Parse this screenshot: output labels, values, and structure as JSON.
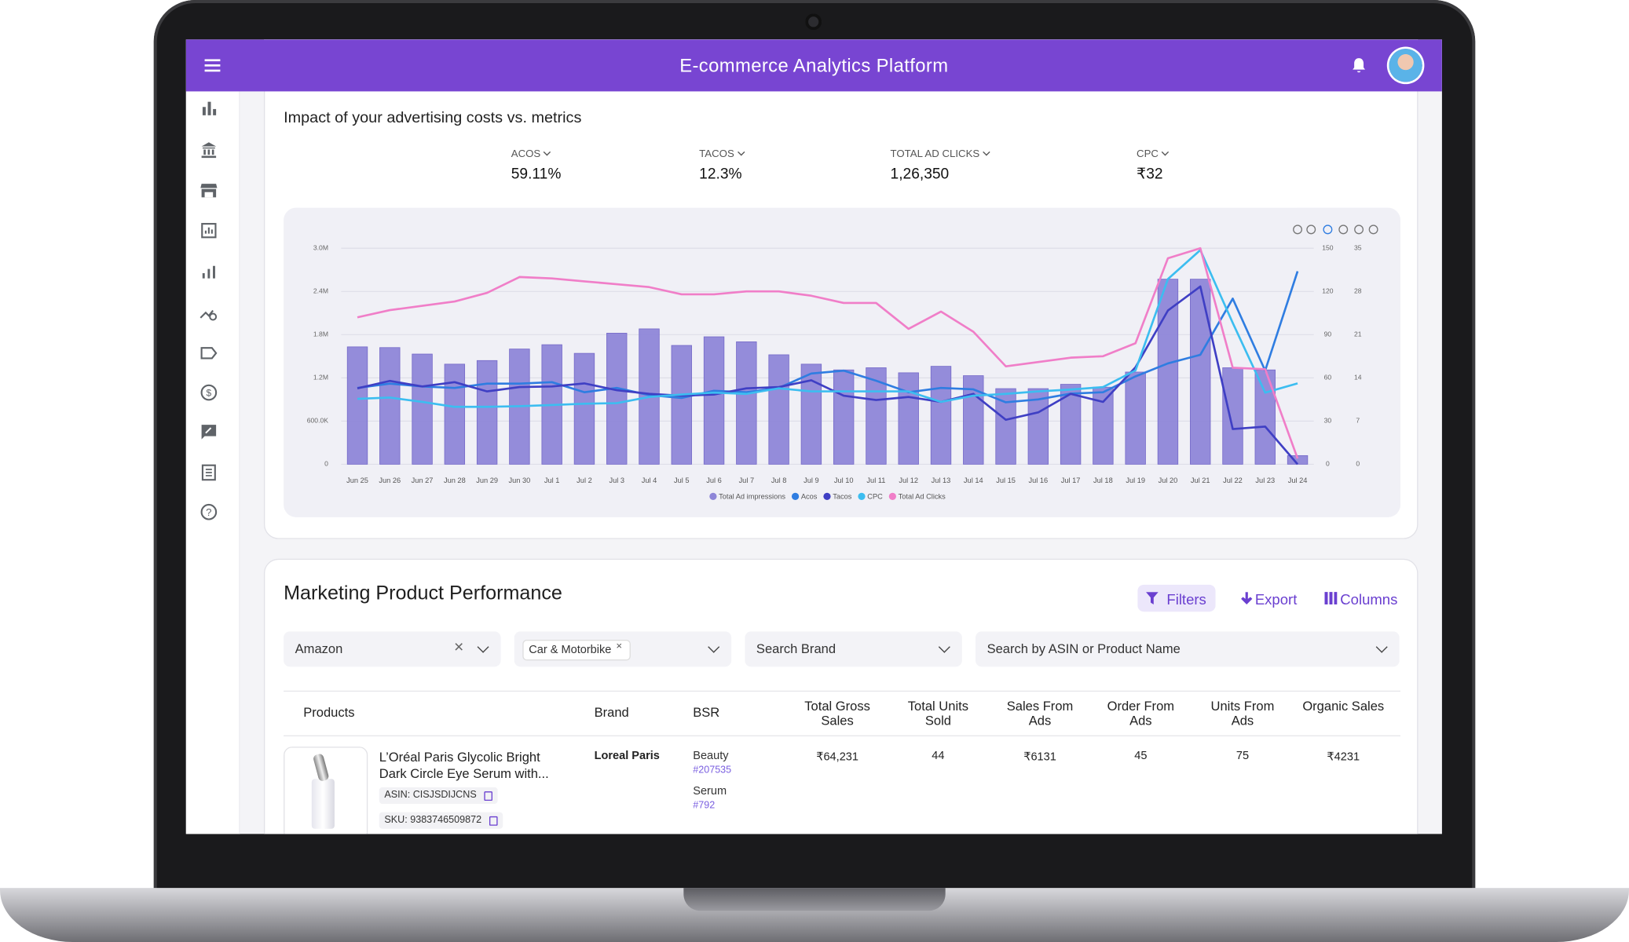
{
  "header": {
    "title": "E-commerce Analytics Platform"
  },
  "ad_card": {
    "title": "Impact of your advertising costs vs. metrics",
    "metrics": [
      {
        "label": "ACOS",
        "value": "59.11%"
      },
      {
        "label": "TACOS",
        "value": "12.3%"
      },
      {
        "label": "TOTAL AD CLICKS",
        "value": "1,26,350"
      },
      {
        "label": "CPC",
        "value": "₹32"
      }
    ]
  },
  "chart_data": {
    "type": "bar",
    "categories": [
      "Jun 25",
      "Jun 26",
      "Jun 27",
      "Jun 28",
      "Jun 29",
      "Jun 30",
      "Jul 1",
      "Jul 2",
      "Jul 3",
      "Jul 4",
      "Jul 5",
      "Jul 6",
      "Jul 7",
      "Jul 8",
      "Jul 9",
      "Jul 10",
      "Jul 11",
      "Jul 12",
      "Jul 13",
      "Jul 14",
      "Jul 15",
      "Jul 16",
      "Jul 17",
      "Jul 18",
      "Jul 19",
      "Jul 20",
      "Jul 21",
      "Jul 22",
      "Jul 23",
      "Jul 24"
    ],
    "series": [
      {
        "name": "Total Ad impressions",
        "type": "bar",
        "axis": "y",
        "color": "#8e86d8",
        "values": [
          1630000,
          1620000,
          1530000,
          1390000,
          1440000,
          1600000,
          1660000,
          1540000,
          1820000,
          1880000,
          1650000,
          1770000,
          1700000,
          1520000,
          1390000,
          1310000,
          1340000,
          1270000,
          1360000,
          1230000,
          1050000,
          1050000,
          1110000,
          1070000,
          1280000,
          2570000,
          2570000,
          1340000,
          1310000,
          120000
        ]
      },
      {
        "name": "Acos",
        "type": "line",
        "axis": "y2",
        "color": "#2f7de1",
        "values": [
          53,
          56,
          54,
          53,
          56,
          56,
          57,
          50,
          53,
          48,
          46,
          51,
          50,
          53,
          63,
          65,
          58,
          50,
          53,
          52,
          43,
          45,
          49,
          50,
          61,
          70,
          76,
          115,
          65,
          134
        ]
      },
      {
        "name": "Tacos",
        "type": "line",
        "axis": "y3",
        "color": "#3f3fc4",
        "values": [
          12.3,
          13.5,
          12.6,
          13.3,
          11.8,
          12.5,
          12.6,
          13.1,
          12.0,
          11.4,
          11.1,
          11.3,
          12.3,
          12.5,
          13.6,
          11.1,
          10.4,
          10.9,
          10.1,
          11.4,
          7.2,
          8.4,
          11.4,
          10.1,
          15.7,
          24.9,
          28.8,
          5.7,
          6.1,
          0
        ]
      },
      {
        "name": "CPC",
        "type": "line",
        "axis": "y3",
        "color": "#3cbdf0",
        "values": [
          10.6,
          10.8,
          10.1,
          9.3,
          9.3,
          9.4,
          9.6,
          9.8,
          9.9,
          10.9,
          11.3,
          11.6,
          11.4,
          12.3,
          11.8,
          11.8,
          11.8,
          11.8,
          10.1,
          11.1,
          11.4,
          11.8,
          12.1,
          12.5,
          15.2,
          30,
          34.7,
          22.9,
          11.6,
          13.1
        ]
      },
      {
        "name": "Total Ad Clicks",
        "type": "line",
        "axis": "y2",
        "color": "#f07ec8",
        "values": [
          102,
          107,
          110,
          113,
          119,
          130,
          129,
          127,
          125,
          123,
          118,
          118,
          120,
          120,
          117,
          112,
          112,
          94,
          106,
          92,
          68,
          71,
          74,
          75,
          84,
          143,
          150,
          67,
          66,
          4
        ]
      }
    ],
    "ylim": [
      0,
      3000000
    ],
    "yticks": [
      0,
      {
        "value": 600000,
        "label": "600.0K"
      },
      {
        "value": 1200000,
        "label": "1.2M"
      },
      {
        "value": 1800000,
        "label": "1.8M"
      },
      {
        "value": 2400000,
        "label": "2.4M"
      },
      {
        "value": 3000000,
        "label": "3.0M"
      }
    ],
    "y2lim": [
      0,
      150
    ],
    "y2ticks": [
      0,
      30,
      60,
      90,
      120,
      150
    ],
    "y3lim": [
      0,
      35
    ],
    "y3ticks": [
      0,
      7,
      14,
      21,
      28,
      35
    ],
    "grid": true,
    "legend": "bottom"
  },
  "product_card": {
    "title": "Marketing Product Performance",
    "actions": [
      "Filters",
      "Export",
      "Columns"
    ],
    "filters": [
      {
        "text": "Amazon",
        "kind": "value"
      },
      {
        "text": "Car & Motorbike",
        "kind": "chip"
      },
      {
        "text": "Search Brand",
        "kind": "placeholder"
      },
      {
        "text": "Search by ASIN or Product Name",
        "kind": "placeholder"
      }
    ],
    "columns": [
      "Products",
      "Brand",
      "BSR",
      "Total Gross Sales",
      "Total Units Sold",
      "Sales From Ads",
      "Order From Ads",
      "Units From Ads",
      "Organic Sales"
    ],
    "rows": [
      {
        "name": "L’Oréal Paris Glycolic Bright Dark Circle Eye Serum with...",
        "asin": "ASIN: CISJSDIJCNS",
        "sku": "SKU: 9383746509872",
        "brand": "Loreal Paris",
        "bsr": [
          {
            "category": "Beauty",
            "rank": "#207535"
          },
          {
            "category": "Serum",
            "rank": "#792"
          }
        ],
        "cells": [
          "₹64,231",
          "44",
          "₹6131",
          "45",
          "75",
          "₹4231"
        ]
      }
    ]
  }
}
